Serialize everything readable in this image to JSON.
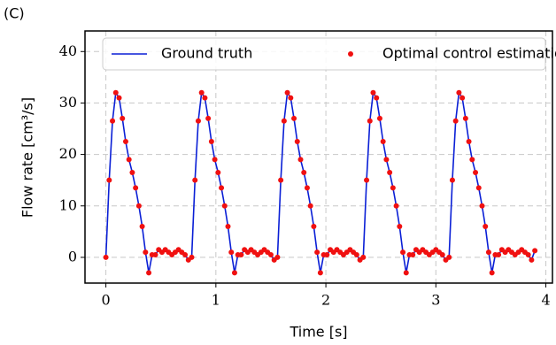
{
  "chart_data": {
    "type": "line",
    "panel_label": "(C)",
    "xlabel": "Time [s]",
    "ylabel": "Flow rate [cm³/s]",
    "xlim": [
      -0.19,
      4.06
    ],
    "ylim": [
      -5,
      44
    ],
    "xticks": [
      0,
      1,
      2,
      3,
      4
    ],
    "yticks": [
      0,
      10,
      20,
      30,
      40
    ],
    "grid": true,
    "legend": "top",
    "x": [
      0,
      0.03,
      0.06,
      0.09,
      0.12,
      0.15,
      0.18,
      0.21,
      0.24,
      0.27,
      0.3,
      0.33,
      0.36,
      0.39,
      0.42,
      0.45,
      0.48,
      0.51,
      0.54,
      0.57,
      0.6,
      0.63,
      0.66,
      0.69,
      0.72,
      0.75,
      0.78,
      0.81,
      0.84,
      0.87,
      0.9,
      0.93,
      0.96,
      0.99,
      1.02,
      1.05,
      1.08,
      1.11,
      1.14,
      1.17,
      1.2,
      1.23,
      1.26,
      1.29,
      1.32,
      1.35,
      1.38,
      1.41,
      1.44,
      1.47,
      1.5,
      1.53,
      1.56,
      1.59,
      1.62,
      1.65,
      1.68,
      1.71,
      1.74,
      1.77,
      1.8,
      1.83,
      1.86,
      1.89,
      1.92,
      1.95,
      1.98,
      2.01,
      2.04,
      2.07,
      2.1,
      2.13,
      2.16,
      2.19,
      2.22,
      2.25,
      2.28,
      2.31,
      2.34,
      2.37,
      2.4,
      2.43,
      2.46,
      2.49,
      2.52,
      2.55,
      2.58,
      2.61,
      2.64,
      2.67,
      2.7,
      2.73,
      2.76,
      2.79,
      2.82,
      2.85,
      2.88,
      2.91,
      2.94,
      2.97,
      3.0,
      3.03,
      3.06,
      3.09,
      3.12,
      3.15,
      3.18,
      3.21,
      3.24,
      3.27,
      3.3,
      3.33,
      3.36,
      3.39,
      3.42,
      3.45,
      3.48,
      3.51,
      3.54,
      3.57,
      3.6,
      3.63,
      3.66,
      3.69,
      3.72,
      3.75,
      3.78,
      3.81,
      3.84,
      3.87,
      3.9
    ],
    "series": [
      {
        "name": "Ground truth",
        "style": "line",
        "color": "#0a1fd6",
        "values": [
          0,
          15,
          26.5,
          32,
          31,
          27,
          22.5,
          19,
          16.5,
          13.5,
          10,
          6,
          1,
          -3,
          0.5,
          0.5,
          1.5,
          1,
          1.5,
          1,
          0.5,
          1,
          1.5,
          1,
          0.5,
          -0.5,
          0,
          15,
          26.5,
          32,
          31,
          27,
          22.5,
          19,
          16.5,
          13.5,
          10,
          6,
          1,
          -3,
          0.5,
          0.5,
          1.5,
          1,
          1.5,
          1,
          0.5,
          1,
          1.5,
          1,
          0.5,
          -0.5,
          0,
          15,
          26.5,
          32,
          31,
          27,
          22.5,
          19,
          16.5,
          13.5,
          10,
          6,
          1,
          -3,
          0.5,
          0.5,
          1.5,
          1,
          1.5,
          1,
          0.5,
          1,
          1.5,
          1,
          0.5,
          -0.5,
          0,
          15,
          26.5,
          32,
          31,
          27,
          22.5,
          19,
          16.5,
          13.5,
          10,
          6,
          1,
          -3,
          0.5,
          0.5,
          1.5,
          1,
          1.5,
          1,
          0.5,
          1,
          1.5,
          1,
          0.5,
          -0.5,
          0,
          15,
          26.5,
          32,
          31,
          27,
          22.5,
          19,
          16.5,
          13.5,
          10,
          6,
          1,
          -3,
          0.5,
          0.5,
          1.5,
          1,
          1.5,
          1,
          0.5,
          1,
          1.5,
          1,
          0.5,
          -0.5,
          1.3
        ]
      },
      {
        "name": "Optimal control estimation",
        "style": "scatter",
        "color": "#f01010",
        "values": [
          0,
          15,
          26.5,
          32,
          31,
          27,
          22.5,
          19,
          16.5,
          13.5,
          10,
          6,
          1,
          -3,
          0.5,
          0.5,
          1.5,
          1,
          1.5,
          1,
          0.5,
          1,
          1.5,
          1,
          0.5,
          -0.5,
          0,
          15,
          26.5,
          32,
          31,
          27,
          22.5,
          19,
          16.5,
          13.5,
          10,
          6,
          1,
          -3,
          0.5,
          0.5,
          1.5,
          1,
          1.5,
          1,
          0.5,
          1,
          1.5,
          1,
          0.5,
          -0.5,
          0,
          15,
          26.5,
          32,
          31,
          27,
          22.5,
          19,
          16.5,
          13.5,
          10,
          6,
          1,
          -3,
          0.5,
          0.5,
          1.5,
          1,
          1.5,
          1,
          0.5,
          1,
          1.5,
          1,
          0.5,
          -0.5,
          0,
          15,
          26.5,
          32,
          31,
          27,
          22.5,
          19,
          16.5,
          13.5,
          10,
          6,
          1,
          -3,
          0.5,
          0.5,
          1.5,
          1,
          1.5,
          1,
          0.5,
          1,
          1.5,
          1,
          0.5,
          -0.5,
          0,
          15,
          26.5,
          32,
          31,
          27,
          22.5,
          19,
          16.5,
          13.5,
          10,
          6,
          1,
          -3,
          0.5,
          0.5,
          1.5,
          1,
          1.5,
          1,
          0.5,
          1,
          1.5,
          1,
          0.5,
          -0.5,
          1.3
        ]
      }
    ]
  }
}
